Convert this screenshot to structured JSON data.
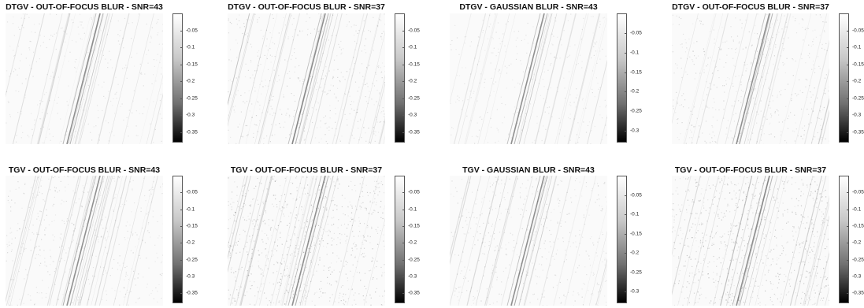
{
  "chart_data": [
    {
      "type": "heatmap",
      "title": "DTGV - OUT-OF-FOCUS BLUR - SNR=43",
      "colorbar": {
        "ticks": [
          "-0.05",
          "-0.1",
          "-0.15",
          "-0.2",
          "-0.25",
          "-0.3",
          "-0.35"
        ],
        "range": [
          -0.38,
          0
        ]
      },
      "noise": 0.35
    },
    {
      "type": "heatmap",
      "title": "DTGV - OUT-OF-FOCUS BLUR - SNR=37",
      "colorbar": {
        "ticks": [
          "-0.05",
          "-0.1",
          "-0.15",
          "-0.2",
          "-0.25",
          "-0.3",
          "-0.35"
        ],
        "range": [
          -0.38,
          0
        ]
      },
      "noise": 0.55
    },
    {
      "type": "heatmap",
      "title": "DTGV - GAUSSIAN BLUR - SNR=43",
      "colorbar": {
        "ticks": [
          "-0.05",
          "-0.1",
          "-0.15",
          "-0.2",
          "-0.25",
          "-0.3"
        ],
        "range": [
          -0.33,
          0
        ]
      },
      "noise": 0.35
    },
    {
      "type": "heatmap",
      "title": "DTGV - OUT-OF-FOCUS BLUR - SNR=37",
      "colorbar": {
        "ticks": [
          "-0.05",
          "-0.1",
          "-0.15",
          "-0.2",
          "-0.25",
          "-0.3",
          "-0.35"
        ],
        "range": [
          -0.38,
          0
        ]
      },
      "noise": 0.55
    },
    {
      "type": "heatmap",
      "title": "TGV - OUT-OF-FOCUS BLUR - SNR=43",
      "colorbar": {
        "ticks": [
          "-0.05",
          "-0.1",
          "-0.15",
          "-0.2",
          "-0.25",
          "-0.3",
          "-0.35"
        ],
        "range": [
          -0.38,
          0
        ]
      },
      "noise": 0.5
    },
    {
      "type": "heatmap",
      "title": "TGV - OUT-OF-FOCUS BLUR - SNR=37",
      "colorbar": {
        "ticks": [
          "-0.05",
          "-0.1",
          "-0.15",
          "-0.2",
          "-0.25",
          "-0.3",
          "-0.35"
        ],
        "range": [
          -0.38,
          0
        ]
      },
      "noise": 0.9
    },
    {
      "type": "heatmap",
      "title": "TGV - GAUSSIAN BLUR - SNR=43",
      "colorbar": {
        "ticks": [
          "-0.05",
          "-0.1",
          "-0.15",
          "-0.2",
          "-0.25",
          "-0.3"
        ],
        "range": [
          -0.33,
          0
        ]
      },
      "noise": 0.5
    },
    {
      "type": "heatmap",
      "title": "TGV - OUT-OF-FOCUS BLUR - SNR=37",
      "colorbar": {
        "ticks": [
          "-0.05",
          "-0.1",
          "-0.15",
          "-0.2",
          "-0.25",
          "-0.3",
          "-0.35"
        ],
        "range": [
          -0.38,
          0
        ]
      },
      "noise": 0.9
    }
  ]
}
